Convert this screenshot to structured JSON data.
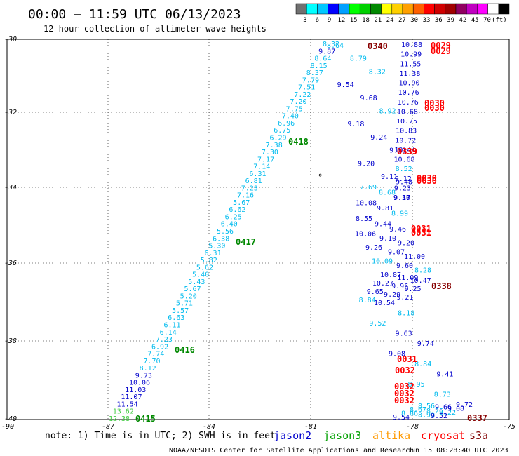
{
  "header": {
    "title": "00:00 – 11:59 UTC 06/13/2023",
    "subtitle": "12 hour collection of altimeter wave heights"
  },
  "colorbar": {
    "colors": [
      "#707070",
      "#00ffff",
      "#00c8ff",
      "#0000ff",
      "#00a0ff",
      "#00ff00",
      "#00d000",
      "#008800",
      "#ffff00",
      "#ffd000",
      "#ffa000",
      "#ff6000",
      "#ff0000",
      "#d00000",
      "#a00000",
      "#900060",
      "#c000c0",
      "#ff00ff",
      "#ffffff",
      "#000000"
    ],
    "labels": [
      "3",
      "6",
      "9",
      "12",
      "15",
      "18",
      "21",
      "24",
      "27",
      "30",
      "33",
      "36",
      "39",
      "42",
      "45",
      "70",
      "(ft)"
    ]
  },
  "axes": {
    "x_ticks": [
      "-87",
      "-84",
      "-81",
      "-78",
      "-75"
    ],
    "y_ticks": [
      "-30",
      "-32",
      "-34",
      "-36",
      "-38",
      "-40"
    ],
    "corner": "-90"
  },
  "tracks": [
    {
      "name": "track-west",
      "color": "#00bbee",
      "values": [
        "8.32",
        "9.87",
        "8.64",
        "8.15",
        "8.37",
        "7.79",
        "7.51",
        "7.22",
        "7.20",
        "7.75",
        "7.40",
        "6.96",
        "6.75",
        "6.29",
        "7.38",
        "7.30",
        "7.17",
        "7.14",
        "6.31",
        "6.81",
        "7.23",
        "7.16",
        "5.67",
        "6.62",
        "6.25",
        "6.40",
        "5.56",
        "6.38",
        "5.30",
        "6.31",
        "5.82",
        "5.62",
        "5.40",
        "5.43",
        "5.67",
        "5.20",
        "5.71",
        "5.57",
        "6.63",
        "6.11",
        "6.14",
        "7.23",
        "6.92",
        "7.74",
        "7.70",
        "8.12",
        "9.73",
        "10.06",
        "11.03",
        "11.07",
        "11.54",
        "13.62",
        "12.38"
      ],
      "colors": [
        "c",
        "b",
        "c",
        "c",
        "c",
        "c",
        "c",
        "c",
        "c",
        "c",
        "c",
        "c",
        "c",
        "c",
        "c",
        "c",
        "c",
        "c",
        "c",
        "c",
        "c",
        "c",
        "c",
        "c",
        "c",
        "c",
        "c",
        "c",
        "c",
        "c",
        "c",
        "c",
        "c",
        "c",
        "c",
        "c",
        "c",
        "c",
        "c",
        "c",
        "c",
        "c",
        "c",
        "c",
        "c",
        "c",
        "b",
        "b",
        "b",
        "b",
        "b",
        "g",
        "g"
      ]
    },
    {
      "name": "track-middle",
      "values": [
        "8.64",
        "8.79",
        "8.32",
        "9.54",
        "9.68",
        "8.92",
        "9.18",
        "9.24",
        "9.11",
        "9.20",
        "9.11",
        "9.48",
        "7.69",
        "8.68",
        "9.10",
        "10.08",
        "9.81",
        "8.99",
        "8.55",
        "9.44",
        "9.46",
        "10.06",
        "9.10",
        "9.20",
        "9.26",
        "9.07",
        "11.00",
        "10.09",
        "9.60",
        "8.28",
        "10.87",
        "11.09",
        "10.47",
        "10.27",
        "9.96",
        "9.25",
        "9.65",
        "9.29",
        "9.21",
        "8.84",
        "10.54",
        "8.18",
        "9.52",
        "9.63",
        "9.74",
        "9.08",
        "8.84",
        "9.41",
        "8.95",
        "8.73",
        "9.72",
        "8.56",
        "9.66",
        "9.08",
        "8.67",
        "8.26",
        "8.22",
        "8.86",
        "8.99",
        "9.52",
        "9.54"
      ],
      "colors": [
        "c",
        "c",
        "c",
        "b",
        "b",
        "c",
        "b",
        "b",
        "b",
        "b",
        "b",
        "b",
        "c",
        "c",
        "b",
        "b",
        "b",
        "c",
        "b",
        "b",
        "b",
        "b",
        "b",
        "b",
        "b",
        "b",
        "b",
        "c",
        "b",
        "c",
        "b",
        "b",
        "b",
        "b",
        "b",
        "b",
        "b",
        "b",
        "b",
        "c",
        "b",
        "c",
        "c",
        "b",
        "b",
        "b",
        "c",
        "b",
        "c",
        "c",
        "b",
        "c",
        "b",
        "b",
        "c",
        "c",
        "c",
        "c",
        "c",
        "b",
        "b"
      ]
    },
    {
      "name": "track-east",
      "values": [
        "10.88",
        "10.99",
        "11.55",
        "11.38",
        "10.90",
        "10.76",
        "10.76",
        "10.68",
        "10.75",
        "10.83",
        "10.72",
        "10.44",
        "10.68",
        "8.52",
        "9.12",
        "9.23",
        "9.37"
      ],
      "colors": [
        "b",
        "b",
        "b",
        "b",
        "b",
        "b",
        "b",
        "b",
        "b",
        "b",
        "b",
        "b",
        "b",
        "c",
        "b",
        "b",
        "b"
      ]
    }
  ],
  "time_labels": [
    {
      "text": "0418",
      "color": "green"
    },
    {
      "text": "0417",
      "color": "green"
    },
    {
      "text": "0416",
      "color": "green"
    },
    {
      "text": "0415",
      "color": "green"
    },
    {
      "text": "0340",
      "color": "darkred"
    },
    {
      "text": "0029",
      "color": "red"
    },
    {
      "text": "0029",
      "color": "red"
    },
    {
      "text": "0030",
      "color": "red"
    },
    {
      "text": "0030",
      "color": "red"
    },
    {
      "text": "0339",
      "color": "darkred"
    },
    {
      "text": "0339",
      "color": "red"
    },
    {
      "text": "0030",
      "color": "red"
    },
    {
      "text": "0030",
      "color": "red"
    },
    {
      "text": "0031",
      "color": "red"
    },
    {
      "text": "0031",
      "color": "red"
    },
    {
      "text": "0338",
      "color": "darkred"
    },
    {
      "text": "0031",
      "color": "red"
    },
    {
      "text": "0032",
      "color": "red"
    },
    {
      "text": "0032",
      "color": "red"
    },
    {
      "text": "0032",
      "color": "red"
    },
    {
      "text": "0032",
      "color": "red"
    },
    {
      "text": "0337",
      "color": "darkred"
    }
  ],
  "marker": "°",
  "footer": {
    "note": "note:  1) Time is in UTC;  2) SWH is in feet",
    "satellites": [
      {
        "name": "jason2",
        "color": "#0000cc"
      },
      {
        "name": "jason3",
        "color": "#00a000"
      },
      {
        "name": "altika",
        "color": "#ff9900"
      },
      {
        "name": "cryosat",
        "color": "#ff0000"
      },
      {
        "name": "s3a",
        "color": "#800000"
      }
    ],
    "credit": "NOAA/NESDIS Center for Satellite Applications and Research",
    "timestamp": "Jun 15 08:28:40 UTC 2023"
  }
}
